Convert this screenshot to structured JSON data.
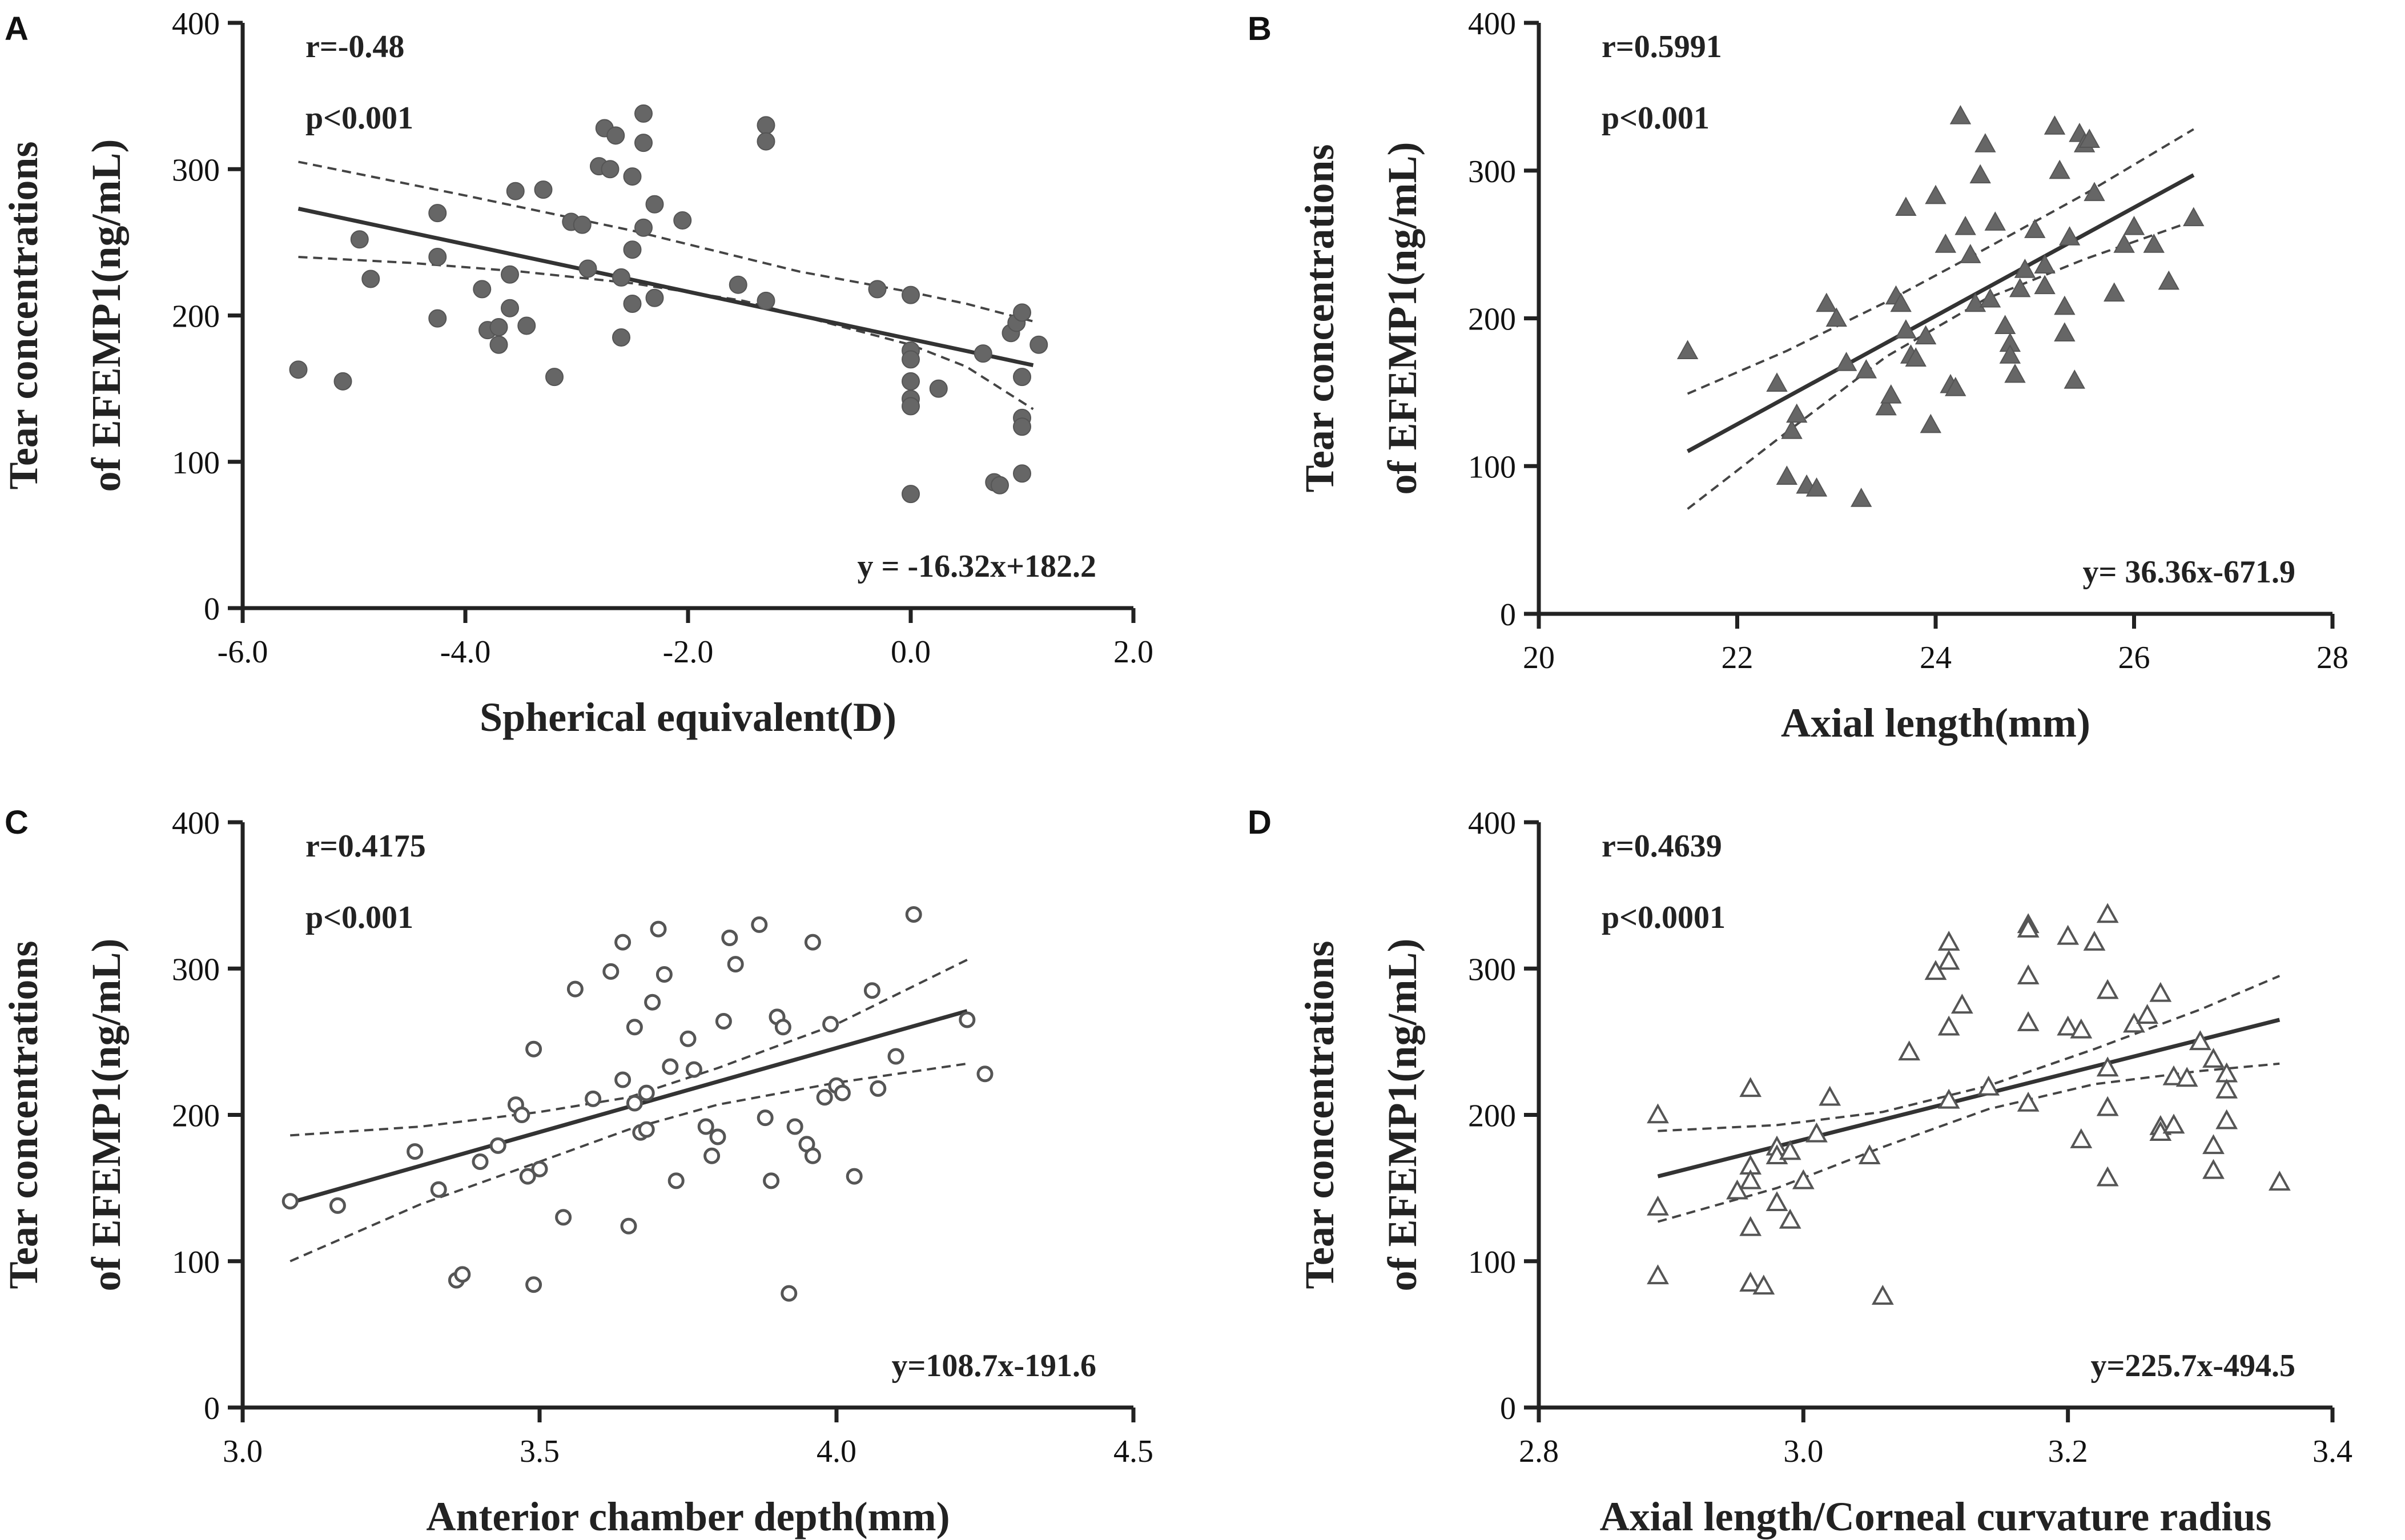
{
  "chart_data": [
    {
      "panel": "A",
      "type": "scatter",
      "marker": "circle-filled",
      "xlabel": "Spherical equivalent(D)",
      "ylabel_line1": "Tear concentrations",
      "ylabel_line2": "of EFEMP1(ng/mL)",
      "xlim": [
        -6.0,
        2.0
      ],
      "ylim": [
        0,
        400
      ],
      "xticks": [
        -6.0,
        -4.0,
        -2.0,
        0.0,
        2.0
      ],
      "xtick_labels": [
        "-6.0",
        "-4.0",
        "-2.0",
        "0.0",
        "2.0"
      ],
      "yticks": [
        0,
        100,
        200,
        300,
        400
      ],
      "ytick_labels": [
        "0",
        "100",
        "200",
        "300",
        "400"
      ],
      "r_text": "r=-0.48",
      "p_text": "p<0.001",
      "equation": "y = -16.32x+182.2",
      "fit": {
        "x": [
          -5.5,
          1.1
        ],
        "y": [
          273,
          166
        ]
      },
      "ci_upper": {
        "x": [
          -5.5,
          -4.0,
          -2.5,
          -1.0,
          0.0,
          0.5,
          1.1
        ],
        "y": [
          305,
          282,
          258,
          230,
          216,
          208,
          196
        ]
      },
      "ci_lower": {
        "x": [
          -5.5,
          -4.5,
          -3.5,
          -2.5,
          -1.5,
          0.0,
          0.5,
          1.1
        ],
        "y": [
          240,
          236,
          230,
          222,
          210,
          180,
          165,
          136
        ]
      },
      "points": [
        [
          -5.5,
          163
        ],
        [
          -5.1,
          155
        ],
        [
          -4.95,
          252
        ],
        [
          -4.85,
          225
        ],
        [
          -4.25,
          270
        ],
        [
          -4.25,
          240
        ],
        [
          -4.25,
          198
        ],
        [
          -3.85,
          218
        ],
        [
          -3.8,
          190
        ],
        [
          -3.7,
          192
        ],
        [
          -3.7,
          180
        ],
        [
          -3.6,
          205
        ],
        [
          -3.6,
          228
        ],
        [
          -3.55,
          285
        ],
        [
          -3.45,
          193
        ],
        [
          -3.3,
          286
        ],
        [
          -3.2,
          158
        ],
        [
          -3.05,
          264
        ],
        [
          -2.95,
          262
        ],
        [
          -2.9,
          232
        ],
        [
          -2.8,
          302
        ],
        [
          -2.75,
          328
        ],
        [
          -2.7,
          300
        ],
        [
          -2.65,
          323
        ],
        [
          -2.6,
          226
        ],
        [
          -2.6,
          185
        ],
        [
          -2.5,
          245
        ],
        [
          -2.5,
          208
        ],
        [
          -2.5,
          295
        ],
        [
          -2.4,
          338
        ],
        [
          -2.4,
          318
        ],
        [
          -2.4,
          260
        ],
        [
          -2.3,
          276
        ],
        [
          -2.3,
          212
        ],
        [
          -2.05,
          265
        ],
        [
          -1.55,
          221
        ],
        [
          -1.3,
          210
        ],
        [
          -1.3,
          330
        ],
        [
          -1.3,
          319
        ],
        [
          -0.3,
          218
        ],
        [
          0.0,
          214
        ],
        [
          0.0,
          176
        ],
        [
          0.0,
          170
        ],
        [
          0.0,
          155
        ],
        [
          0.0,
          143
        ],
        [
          0.0,
          138
        ],
        [
          0.0,
          78
        ],
        [
          0.25,
          150
        ],
        [
          0.65,
          174
        ],
        [
          0.75,
          86
        ],
        [
          0.8,
          84
        ],
        [
          0.9,
          188
        ],
        [
          0.95,
          195
        ],
        [
          1.0,
          202
        ],
        [
          1.0,
          158
        ],
        [
          1.0,
          130
        ],
        [
          1.0,
          124
        ],
        [
          1.0,
          92
        ],
        [
          1.15,
          180
        ]
      ]
    },
    {
      "panel": "B",
      "type": "scatter",
      "marker": "triangle-filled",
      "xlabel": "Axial length(mm)",
      "ylabel_line1": "Tear concentrations",
      "ylabel_line2": "of EFEMP1(ng/mL)",
      "xlim": [
        20,
        28
      ],
      "ylim": [
        0,
        400
      ],
      "xticks": [
        20,
        22,
        24,
        26,
        28
      ],
      "xtick_labels": [
        "20",
        "22",
        "24",
        "26",
        "28"
      ],
      "yticks": [
        0,
        100,
        200,
        300,
        400
      ],
      "ytick_labels": [
        "0",
        "100",
        "200",
        "300",
        "400"
      ],
      "r_text": "r=0.5991",
      "p_text": "p<0.001",
      "equation": "y= 36.36x-671.9",
      "fit": {
        "x": [
          21.5,
          26.6
        ],
        "y": [
          110,
          297
        ]
      },
      "ci_upper": {
        "x": [
          21.5,
          22.5,
          23.5,
          24.5,
          25.5,
          26.6
        ],
        "y": [
          149,
          178,
          211,
          247,
          284,
          328
        ]
      },
      "ci_lower": {
        "x": [
          21.5,
          22.5,
          23.5,
          24.5,
          25.5,
          26.6
        ],
        "y": [
          71,
          123,
          174,
          213,
          240,
          266
        ]
      },
      "points": [
        [
          21.5,
          178
        ],
        [
          22.4,
          156
        ],
        [
          22.5,
          93
        ],
        [
          22.55,
          124
        ],
        [
          22.6,
          135
        ],
        [
          22.7,
          87
        ],
        [
          22.8,
          85
        ],
        [
          22.9,
          210
        ],
        [
          23.0,
          200
        ],
        [
          23.1,
          170
        ],
        [
          23.25,
          78
        ],
        [
          23.3,
          165
        ],
        [
          23.5,
          140
        ],
        [
          23.55,
          148
        ],
        [
          23.6,
          215
        ],
        [
          23.65,
          210
        ],
        [
          23.7,
          275
        ],
        [
          23.7,
          192
        ],
        [
          23.75,
          175
        ],
        [
          23.8,
          173
        ],
        [
          23.9,
          188
        ],
        [
          23.95,
          128
        ],
        [
          24.0,
          283
        ],
        [
          24.1,
          250
        ],
        [
          24.15,
          155
        ],
        [
          24.2,
          153
        ],
        [
          24.25,
          337
        ],
        [
          24.3,
          262
        ],
        [
          24.35,
          243
        ],
        [
          24.4,
          210
        ],
        [
          24.45,
          297
        ],
        [
          24.5,
          318
        ],
        [
          24.55,
          213
        ],
        [
          24.6,
          265
        ],
        [
          24.7,
          195
        ],
        [
          24.75,
          183
        ],
        [
          24.75,
          175
        ],
        [
          24.8,
          162
        ],
        [
          24.85,
          220
        ],
        [
          24.9,
          233
        ],
        [
          25.0,
          260
        ],
        [
          25.1,
          222
        ],
        [
          25.2,
          330
        ],
        [
          25.25,
          300
        ],
        [
          25.3,
          208
        ],
        [
          25.3,
          190
        ],
        [
          25.35,
          255
        ],
        [
          25.4,
          158
        ],
        [
          25.45,
          325
        ],
        [
          25.5,
          318
        ],
        [
          25.55,
          321
        ],
        [
          25.6,
          285
        ],
        [
          25.8,
          217
        ],
        [
          25.9,
          250
        ],
        [
          26.0,
          262
        ],
        [
          26.2,
          250
        ],
        [
          26.35,
          225
        ],
        [
          26.6,
          268
        ],
        [
          25.1,
          236
        ]
      ]
    },
    {
      "panel": "C",
      "type": "scatter",
      "marker": "circle-open",
      "xlabel": "Anterior chamber depth(mm)",
      "ylabel_line1": "Tear concentrations",
      "ylabel_line2": "of EFEMP1(ng/mL)",
      "xlim": [
        3.0,
        4.5
      ],
      "ylim": [
        0,
        400
      ],
      "xticks": [
        3.0,
        3.5,
        4.0,
        4.5
      ],
      "xtick_labels": [
        "3.0",
        "3.5",
        "4.0",
        "4.5"
      ],
      "yticks": [
        0,
        100,
        200,
        300,
        400
      ],
      "ytick_labels": [
        "0",
        "100",
        "200",
        "300",
        "400"
      ],
      "r_text": "r=0.4175",
      "p_text": "p<0.001",
      "equation": "y=108.7x-191.6",
      "fit": {
        "x": [
          3.08,
          4.22
        ],
        "y": [
          140,
          271
        ]
      },
      "ci_upper": {
        "x": [
          3.08,
          3.3,
          3.5,
          3.65,
          3.8,
          4.0,
          4.22
        ],
        "y": [
          186,
          192,
          202,
          212,
          232,
          262,
          306
        ]
      },
      "ci_lower": {
        "x": [
          3.08,
          3.3,
          3.5,
          3.65,
          3.8,
          4.0,
          4.22
        ],
        "y": [
          100,
          139,
          168,
          190,
          207,
          222,
          235
        ]
      },
      "points": [
        [
          3.08,
          141
        ],
        [
          3.16,
          138
        ],
        [
          3.29,
          175
        ],
        [
          3.33,
          149
        ],
        [
          3.36,
          87
        ],
        [
          3.37,
          91
        ],
        [
          3.4,
          168
        ],
        [
          3.43,
          179
        ],
        [
          3.46,
          207
        ],
        [
          3.47,
          200
        ],
        [
          3.48,
          158
        ],
        [
          3.49,
          245
        ],
        [
          3.49,
          84
        ],
        [
          3.5,
          163
        ],
        [
          3.54,
          130
        ],
        [
          3.56,
          286
        ],
        [
          3.59,
          211
        ],
        [
          3.62,
          298
        ],
        [
          3.64,
          318
        ],
        [
          3.64,
          224
        ],
        [
          3.65,
          124
        ],
        [
          3.66,
          260
        ],
        [
          3.66,
          208
        ],
        [
          3.67,
          188
        ],
        [
          3.68,
          190
        ],
        [
          3.68,
          215
        ],
        [
          3.69,
          277
        ],
        [
          3.7,
          327
        ],
        [
          3.71,
          296
        ],
        [
          3.72,
          233
        ],
        [
          3.73,
          155
        ],
        [
          3.75,
          252
        ],
        [
          3.76,
          231
        ],
        [
          3.78,
          192
        ],
        [
          3.79,
          172
        ],
        [
          3.8,
          185
        ],
        [
          3.81,
          264
        ],
        [
          3.82,
          321
        ],
        [
          3.83,
          303
        ],
        [
          3.87,
          330
        ],
        [
          3.88,
          198
        ],
        [
          3.89,
          155
        ],
        [
          3.9,
          267
        ],
        [
          3.91,
          260
        ],
        [
          3.92,
          78
        ],
        [
          3.93,
          192
        ],
        [
          3.95,
          180
        ],
        [
          3.96,
          172
        ],
        [
          3.96,
          318
        ],
        [
          3.98,
          212
        ],
        [
          3.99,
          262
        ],
        [
          4.0,
          220
        ],
        [
          4.01,
          215
        ],
        [
          4.03,
          158
        ],
        [
          4.06,
          285
        ],
        [
          4.07,
          218
        ],
        [
          4.1,
          240
        ],
        [
          4.13,
          337
        ],
        [
          4.22,
          265
        ],
        [
          4.25,
          228
        ]
      ]
    },
    {
      "panel": "D",
      "type": "scatter",
      "marker": "triangle-open",
      "xlabel": "Axial length/Corneal curvature radius",
      "ylabel_line1": "Tear concentrations",
      "ylabel_line2": "of EFEMP1(ng/mL)",
      "xlim": [
        2.8,
        3.4
      ],
      "ylim": [
        0,
        400
      ],
      "xticks": [
        2.8,
        3.0,
        3.2,
        3.4
      ],
      "xtick_labels": [
        "2.8",
        "3.0",
        "3.2",
        "3.4"
      ],
      "yticks": [
        0,
        100,
        200,
        300,
        400
      ],
      "ytick_labels": [
        "0",
        "100",
        "200",
        "300",
        "400"
      ],
      "r_text": "r=0.4639",
      "p_text": "p<0.0001",
      "equation": "y=225.7x-494.5",
      "fit": {
        "x": [
          2.89,
          3.36
        ],
        "y": [
          158,
          265
        ]
      },
      "ci_upper": {
        "x": [
          2.89,
          2.98,
          3.06,
          3.14,
          3.22,
          3.3,
          3.36
        ],
        "y": [
          189,
          193,
          202,
          220,
          245,
          272,
          295
        ]
      },
      "ci_lower": {
        "x": [
          2.89,
          2.98,
          3.06,
          3.14,
          3.22,
          3.3,
          3.36
        ],
        "y": [
          127,
          150,
          178,
          204,
          221,
          230,
          235
        ]
      },
      "points": [
        [
          2.89,
          200
        ],
        [
          2.89,
          137
        ],
        [
          2.89,
          90
        ],
        [
          2.95,
          148
        ],
        [
          2.96,
          218
        ],
        [
          2.96,
          165
        ],
        [
          2.96,
          155
        ],
        [
          2.96,
          123
        ],
        [
          2.96,
          85
        ],
        [
          2.97,
          83
        ],
        [
          2.98,
          140
        ],
        [
          2.98,
          178
        ],
        [
          2.98,
          172
        ],
        [
          2.99,
          175
        ],
        [
          2.99,
          128
        ],
        [
          3.0,
          155
        ],
        [
          3.01,
          187
        ],
        [
          3.02,
          212
        ],
        [
          3.05,
          172
        ],
        [
          3.06,
          76
        ],
        [
          3.08,
          243
        ],
        [
          3.1,
          298
        ],
        [
          3.11,
          318
        ],
        [
          3.11,
          305
        ],
        [
          3.11,
          260
        ],
        [
          3.11,
          210
        ],
        [
          3.12,
          275
        ],
        [
          3.14,
          219
        ],
        [
          3.17,
          330
        ],
        [
          3.17,
          327
        ],
        [
          3.17,
          295
        ],
        [
          3.17,
          263
        ],
        [
          3.17,
          208
        ],
        [
          3.2,
          260
        ],
        [
          3.2,
          322
        ],
        [
          3.21,
          258
        ],
        [
          3.21,
          183
        ],
        [
          3.22,
          318
        ],
        [
          3.23,
          337
        ],
        [
          3.23,
          285
        ],
        [
          3.23,
          232
        ],
        [
          3.23,
          205
        ],
        [
          3.23,
          157
        ],
        [
          3.25,
          262
        ],
        [
          3.26,
          268
        ],
        [
          3.27,
          283
        ],
        [
          3.27,
          192
        ],
        [
          3.27,
          188
        ],
        [
          3.28,
          226
        ],
        [
          3.28,
          193
        ],
        [
          3.3,
          250
        ],
        [
          3.31,
          238
        ],
        [
          3.31,
          179
        ],
        [
          3.31,
          162
        ],
        [
          3.32,
          228
        ],
        [
          3.32,
          217
        ],
        [
          3.32,
          196
        ],
        [
          3.36,
          154
        ],
        [
          3.29,
          225
        ]
      ]
    }
  ]
}
